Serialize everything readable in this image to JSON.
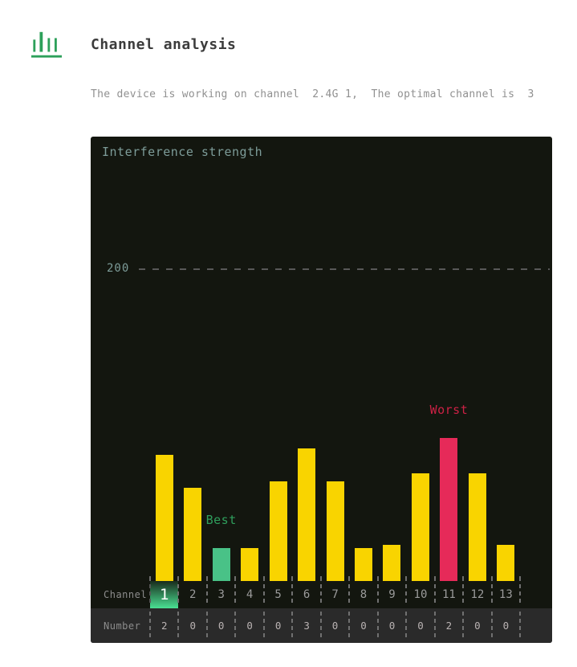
{
  "header": {
    "title": "Channel analysis",
    "subtitle": "The device is working on channel  2.4G 1,  The optimal channel is  3"
  },
  "chart_data": {
    "type": "bar",
    "title": "Interference strength",
    "y_tick_label": "200",
    "y_tick_value": 200,
    "ylim": [
      0,
      285
    ],
    "grid": "single dashed horizontal threshold line at y=200",
    "legend_position": "none",
    "row_labels": {
      "channel": "Channel",
      "number": "Number"
    },
    "categories": [
      "1",
      "2",
      "3",
      "4",
      "5",
      "6",
      "7",
      "8",
      "9",
      "10",
      "11",
      "12",
      "13"
    ],
    "series": [
      {
        "name": "Interference strength (estimated from bar heights)",
        "values": [
          81,
          60,
          21,
          21,
          64,
          85,
          64,
          21,
          23,
          69,
          92,
          69,
          23
        ]
      },
      {
        "name": "Number",
        "values": [
          2,
          0,
          0,
          0,
          0,
          3,
          0,
          0,
          0,
          0,
          2,
          0,
          0
        ]
      }
    ],
    "annotations": [
      {
        "text": "Best",
        "channel": "3"
      },
      {
        "text": "Worst",
        "channel": "11"
      }
    ],
    "highlighted_channel": "1"
  },
  "colors": {
    "chart-bg": "#13160f",
    "chart-title": "#7d9c99",
    "bar-normal": "#f9d400",
    "bar-best": "#49c287",
    "bar-worst": "#e62a59",
    "label-best": "#2f9e5c",
    "label-worst": "#cc2145",
    "highlight-green": "#4ae093",
    "accent-green": "#2da05a"
  }
}
